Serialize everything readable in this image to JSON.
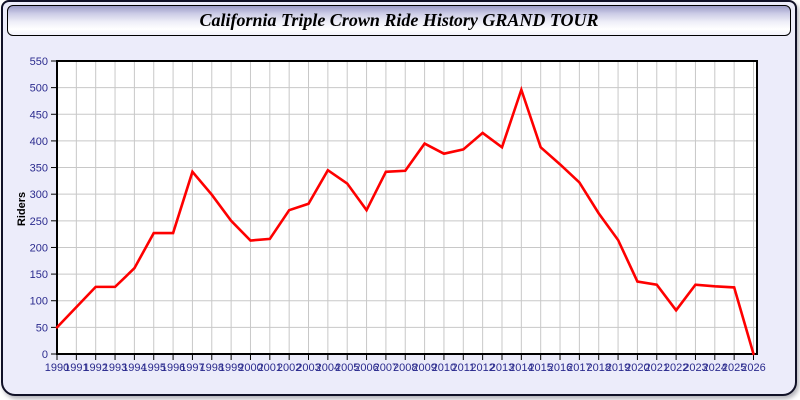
{
  "title": "California Triple Crown Ride History GRAND TOUR",
  "ylabel": "Riders",
  "colors": {
    "line": "#FE0000",
    "panel_bg": "#ECECFA",
    "plot_bg": "#FFFFFF",
    "grid": "#C8C8C8",
    "axis": "#000000",
    "tick_label": "#2B2B8E"
  },
  "chart_data": {
    "type": "line",
    "title": "California Triple Crown Ride History GRAND TOUR",
    "xlabel": "",
    "ylabel": "Riders",
    "x": [
      1990,
      1991,
      1992,
      1993,
      1994,
      1995,
      1996,
      1997,
      1998,
      1999,
      2000,
      2001,
      2002,
      2003,
      2004,
      2005,
      2006,
      2007,
      2008,
      2009,
      2010,
      2011,
      2012,
      2013,
      2014,
      2015,
      2016,
      2017,
      2018,
      2019,
      2020,
      2021,
      2022,
      2023,
      2024,
      2025,
      2026
    ],
    "series": [
      {
        "name": "Riders",
        "color": "#FE0000",
        "values": [
          50,
          88,
          126,
          126,
          161,
          227,
          227,
          342,
          299,
          250,
          213,
          216,
          270,
          282,
          345,
          320,
          270,
          342,
          344,
          395,
          376,
          384,
          415,
          388,
          496,
          388,
          356,
          322,
          264,
          214,
          136,
          130,
          82,
          130,
          127,
          125,
          0
        ]
      }
    ],
    "ylim": [
      0,
      550
    ],
    "ytick_step": 50,
    "grid": true,
    "legend_position": "none"
  }
}
